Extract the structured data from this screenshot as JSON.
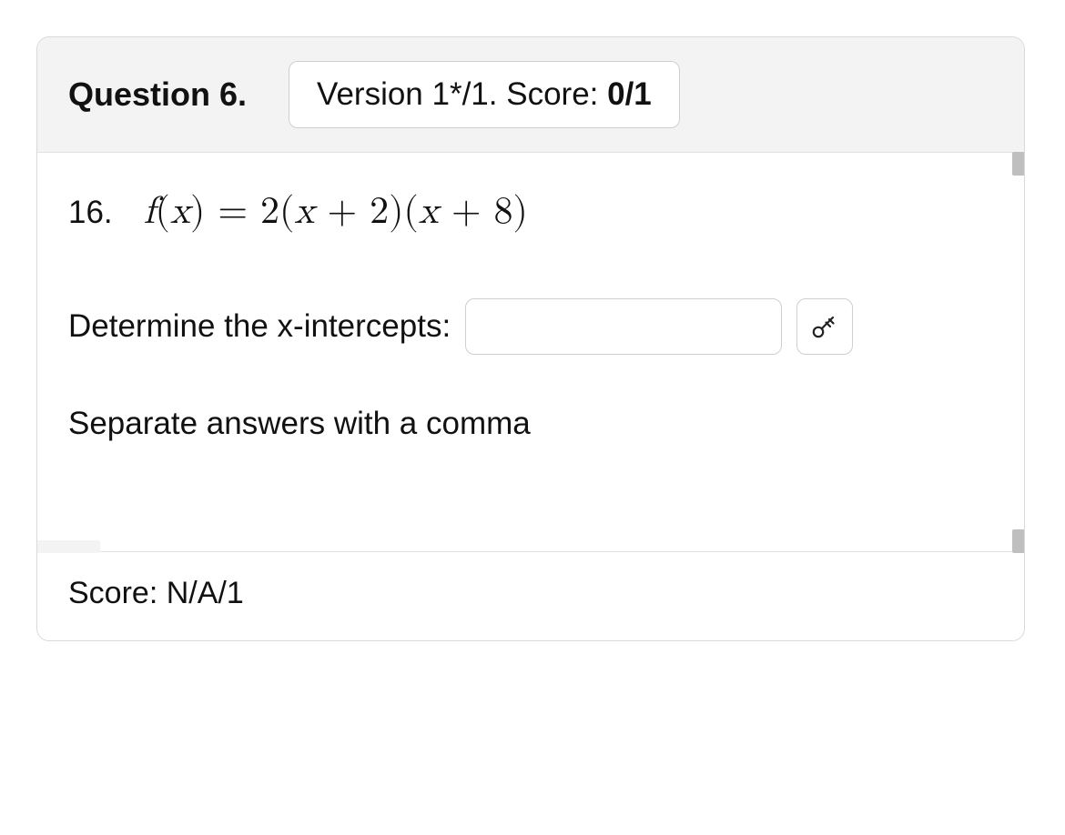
{
  "header": {
    "question_label": "Question 6.",
    "version_prefix": "Version ",
    "version_text": "1*/1.",
    "score_label": " Score: ",
    "score_value": "0/1"
  },
  "problem": {
    "index": "16.",
    "math_html": "<span class=\"mi\">f</span><span class=\"rm\">(</span><span class=\"mi\">x</span><span class=\"rm\">)</span> <span class=\"rm\">=</span> <span class=\"rm\">2(</span><span class=\"mi\">x</span> <span class=\"rm\">+ 2)(</span><span class=\"mi\">x</span> <span class=\"rm\">+ 8)</span>",
    "prompt": "Determine the x-intercepts:",
    "input_value": "",
    "input_placeholder": "",
    "hint": "Separate answers with a comma"
  },
  "footer": {
    "score_text": "Score: N/A/1"
  },
  "colors": {
    "card_border": "#d9d9d9",
    "header_bg": "#f3f3f3",
    "text": "#111111",
    "input_border": "#cfcfcf"
  },
  "icons": {
    "key": "key-icon"
  }
}
